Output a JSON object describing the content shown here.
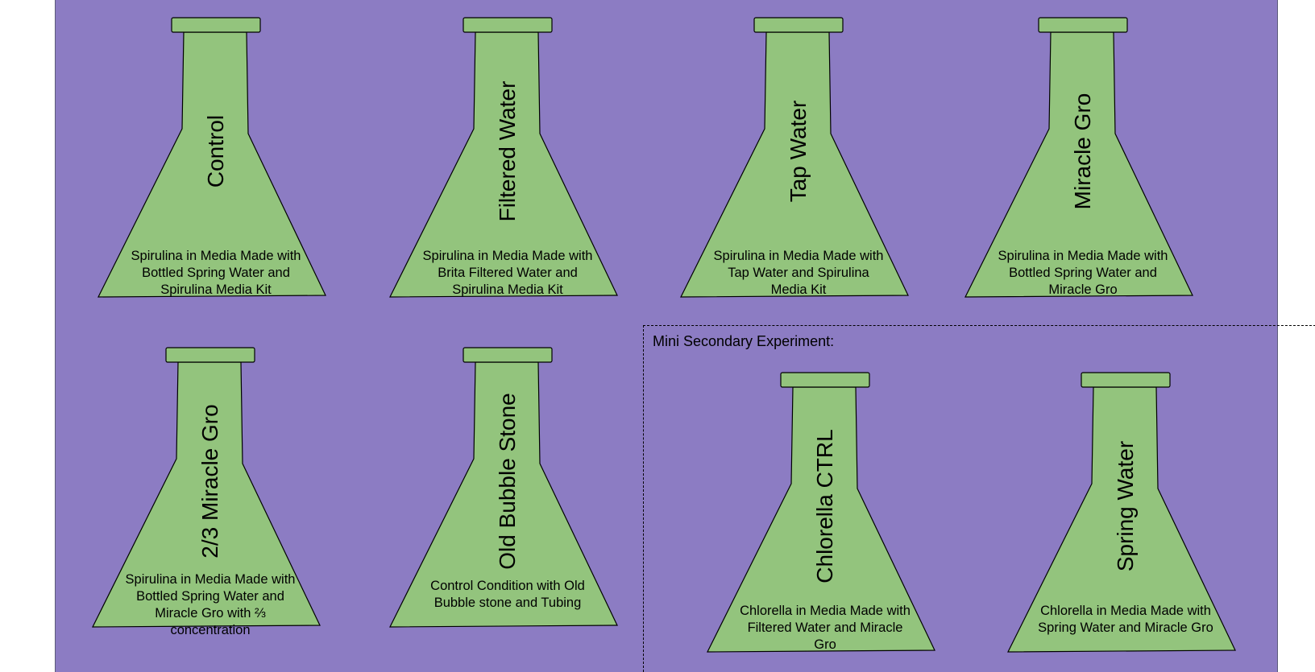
{
  "colors": {
    "background": "#8c7cc3",
    "flask_fill": "#93c47d",
    "outline": "#000000"
  },
  "flasks": [
    {
      "title": "Control",
      "desc": "Spirulina in Media Made with Bottled Spring Water and Spirulina Media Kit"
    },
    {
      "title": "Filtered Water",
      "desc": "Spirulina in Media Made with Brita Filtered Water and Spirulina Media Kit"
    },
    {
      "title": "Tap Water",
      "desc": "Spirulina in Media Made with Tap Water and Spirulina Media Kit"
    },
    {
      "title": "Miracle Gro",
      "desc": "Spirulina in Media Made with Bottled Spring Water and Miracle Gro"
    },
    {
      "title": "2/3 Miracle Gro",
      "desc": "Spirulina in Media Made with Bottled Spring Water and Miracle Gro with ⅔ concentration"
    },
    {
      "title": "Old Bubble Stone",
      "desc": "Control Condition with Old Bubble stone and Tubing"
    }
  ],
  "secondary": {
    "label": "Mini Secondary Experiment:",
    "flasks": [
      {
        "title": "Chlorella CTRL",
        "desc": "Chlorella in Media Made with Filtered Water and Miracle Gro"
      },
      {
        "title": "Spring Water",
        "desc": "Chlorella in Media Made with Spring Water and Miracle Gro"
      }
    ]
  }
}
